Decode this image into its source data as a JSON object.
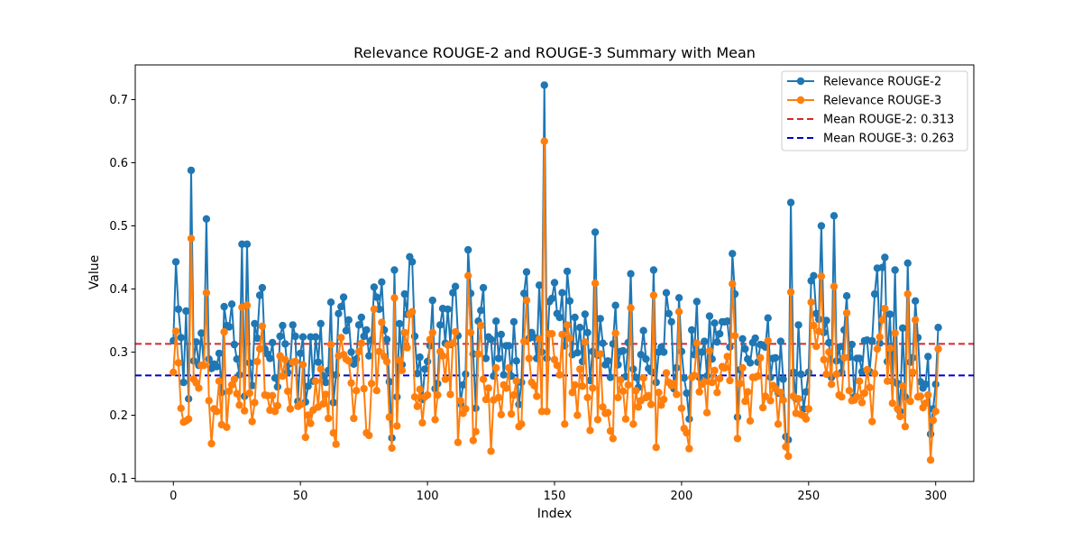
{
  "chart_data": {
    "type": "line",
    "title": "Relevance ROUGE-2 and ROUGE-3 Summary with Mean",
    "xlabel": "Index",
    "ylabel": "Value",
    "xlim": [
      -15,
      315
    ],
    "ylim": [
      0.095,
      0.755
    ],
    "xticks": [
      0,
      50,
      100,
      150,
      200,
      250,
      300
    ],
    "yticks": [
      0.1,
      0.2,
      0.3,
      0.4,
      0.5,
      0.6,
      0.7
    ],
    "ytick_labels": [
      "0.1",
      "0.2",
      "0.3",
      "0.4",
      "0.5",
      "0.6",
      "0.7"
    ],
    "grid": false,
    "legend_position": "top-right",
    "series": [
      {
        "name": "Relevance ROUGE-2",
        "color": "#1f77b4",
        "marker": "circle",
        "values": [
          0.318,
          0.443,
          0.368,
          0.323,
          0.252,
          0.365,
          0.226,
          0.588,
          0.286,
          0.316,
          0.279,
          0.33,
          0.279,
          0.511,
          0.289,
          0.274,
          0.281,
          0.277,
          0.298,
          0.236,
          0.372,
          0.342,
          0.34,
          0.376,
          0.312,
          0.289,
          0.264,
          0.471,
          0.23,
          0.471,
          0.283,
          0.247,
          0.345,
          0.322,
          0.39,
          0.402,
          0.305,
          0.297,
          0.29,
          0.315,
          0.259,
          0.245,
          0.325,
          0.342,
          0.313,
          0.268,
          0.282,
          0.343,
          0.325,
          0.222,
          0.298,
          0.324,
          0.221,
          0.246,
          0.324,
          0.254,
          0.324,
          0.284,
          0.345,
          0.262,
          0.252,
          0.271,
          0.379,
          0.22,
          0.264,
          0.361,
          0.372,
          0.387,
          0.334,
          0.351,
          0.3,
          0.281,
          0.289,
          0.343,
          0.355,
          0.325,
          0.335,
          0.294,
          0.319,
          0.403,
          0.387,
          0.368,
          0.411,
          0.335,
          0.32,
          0.253,
          0.164,
          0.43,
          0.229,
          0.345,
          0.28,
          0.392,
          0.36,
          0.451,
          0.443,
          0.325,
          0.266,
          0.292,
          0.225,
          0.273,
          0.285,
          0.31,
          0.382,
          0.242,
          0.25,
          0.343,
          0.369,
          0.314,
          0.368,
          0.312,
          0.394,
          0.404,
          0.326,
          0.218,
          0.248,
          0.265,
          0.462,
          0.393,
          0.297,
          0.211,
          0.349,
          0.366,
          0.402,
          0.29,
          0.324,
          0.32,
          0.262,
          0.349,
          0.29,
          0.328,
          0.264,
          0.31,
          0.31,
          0.262,
          0.348,
          0.286,
          0.217,
          0.252,
          0.393,
          0.427,
          0.322,
          0.331,
          0.323,
          0.29,
          0.406,
          0.3,
          0.723,
          0.29,
          0.38,
          0.385,
          0.41,
          0.361,
          0.355,
          0.394,
          0.31,
          0.428,
          0.381,
          0.296,
          0.355,
          0.299,
          0.339,
          0.285,
          0.36,
          0.331,
          0.255,
          0.301,
          0.49,
          0.295,
          0.353,
          0.314,
          0.28,
          0.286,
          0.26,
          0.313,
          0.374,
          0.28,
          0.301,
          0.302,
          0.261,
          0.315,
          0.424,
          0.273,
          0.26,
          0.244,
          0.296,
          0.334,
          0.289,
          0.274,
          0.269,
          0.43,
          0.252,
          0.3,
          0.308,
          0.3,
          0.394,
          0.361,
          0.348,
          0.242,
          0.275,
          0.386,
          0.301,
          0.259,
          0.235,
          0.194,
          0.335,
          0.296,
          0.38,
          0.26,
          0.3,
          0.317,
          0.262,
          0.357,
          0.289,
          0.346,
          0.316,
          0.329,
          0.348,
          0.348,
          0.349,
          0.308,
          0.456,
          0.392,
          0.197,
          0.272,
          0.321,
          0.305,
          0.289,
          0.283,
          0.315,
          0.322,
          0.284,
          0.312,
          0.311,
          0.308,
          0.354,
          0.26,
          0.29,
          0.291,
          0.235,
          0.317,
          0.257,
          0.166,
          0.161,
          0.537,
          0.268,
          0.226,
          0.343,
          0.265,
          0.21,
          0.237,
          0.268,
          0.413,
          0.421,
          0.361,
          0.352,
          0.5,
          0.331,
          0.35,
          0.315,
          0.26,
          0.516,
          0.286,
          0.308,
          0.268,
          0.335,
          0.389,
          0.292,
          0.312,
          0.229,
          0.29,
          0.29,
          0.269,
          0.318,
          0.319,
          0.269,
          0.318,
          0.392,
          0.433,
          0.314,
          0.434,
          0.45,
          0.285,
          0.36,
          0.254,
          0.43,
          0.25,
          0.206,
          0.338,
          0.229,
          0.441,
          0.284,
          0.291,
          0.381,
          0.323,
          0.253,
          0.243,
          0.249,
          0.293,
          0.17,
          0.21,
          0.249,
          0.339
        ]
      },
      {
        "name": "Relevance ROUGE-3",
        "color": "#ff7f0e",
        "marker": "circle",
        "values": [
          0.268,
          0.333,
          0.283,
          0.211,
          0.189,
          0.191,
          0.194,
          0.48,
          0.257,
          0.251,
          0.243,
          0.279,
          0.279,
          0.394,
          0.223,
          0.155,
          0.21,
          0.206,
          0.254,
          0.185,
          0.332,
          0.181,
          0.238,
          0.248,
          0.257,
          0.234,
          0.216,
          0.371,
          0.207,
          0.374,
          0.235,
          0.19,
          0.22,
          0.285,
          0.305,
          0.341,
          0.232,
          0.231,
          0.208,
          0.231,
          0.206,
          0.215,
          0.294,
          0.262,
          0.288,
          0.238,
          0.21,
          0.284,
          0.285,
          0.214,
          0.217,
          0.28,
          0.165,
          0.2,
          0.187,
          0.208,
          0.254,
          0.213,
          0.273,
          0.218,
          0.233,
          0.195,
          0.312,
          0.172,
          0.154,
          0.294,
          0.323,
          0.296,
          0.289,
          0.286,
          0.251,
          0.195,
          0.239,
          0.301,
          0.314,
          0.242,
          0.172,
          0.168,
          0.25,
          0.368,
          0.239,
          0.301,
          0.347,
          0.293,
          0.285,
          0.197,
          0.148,
          0.386,
          0.183,
          0.287,
          0.271,
          0.331,
          0.307,
          0.36,
          0.364,
          0.229,
          0.214,
          0.241,
          0.188,
          0.229,
          0.232,
          0.32,
          0.331,
          0.193,
          0.232,
          0.301,
          0.294,
          0.257,
          0.311,
          0.233,
          0.314,
          0.332,
          0.157,
          0.223,
          0.203,
          0.21,
          0.421,
          0.331,
          0.16,
          0.174,
          0.297,
          0.342,
          0.257,
          0.225,
          0.243,
          0.143,
          0.224,
          0.275,
          0.228,
          0.201,
          0.248,
          0.243,
          0.275,
          0.202,
          0.232,
          0.254,
          0.182,
          0.186,
          0.317,
          0.382,
          0.29,
          0.252,
          0.247,
          0.23,
          0.321,
          0.206,
          0.634,
          0.206,
          0.329,
          0.329,
          0.288,
          0.279,
          0.264,
          0.328,
          0.186,
          0.343,
          0.322,
          0.236,
          0.248,
          0.2,
          0.273,
          0.246,
          0.316,
          0.228,
          0.176,
          0.243,
          0.409,
          0.193,
          0.297,
          0.213,
          0.203,
          0.204,
          0.175,
          0.163,
          0.33,
          0.228,
          0.256,
          0.238,
          0.194,
          0.248,
          0.37,
          0.186,
          0.239,
          0.213,
          0.223,
          0.259,
          0.228,
          0.231,
          0.217,
          0.39,
          0.149,
          0.236,
          0.216,
          0.225,
          0.267,
          0.252,
          0.247,
          0.25,
          0.233,
          0.364,
          0.211,
          0.179,
          0.172,
          0.147,
          0.26,
          0.263,
          0.314,
          0.237,
          0.249,
          0.253,
          0.204,
          0.302,
          0.252,
          0.271,
          0.236,
          0.258,
          0.277,
          0.275,
          0.293,
          0.255,
          0.408,
          0.326,
          0.163,
          0.25,
          0.275,
          0.222,
          0.237,
          0.191,
          0.26,
          0.26,
          0.262,
          0.291,
          0.212,
          0.23,
          0.318,
          0.223,
          0.247,
          0.242,
          0.186,
          0.236,
          0.224,
          0.15,
          0.135,
          0.395,
          0.23,
          0.203,
          0.226,
          0.201,
          0.199,
          0.194,
          0.21,
          0.379,
          0.342,
          0.309,
          0.333,
          0.42,
          0.288,
          0.265,
          0.3,
          0.249,
          0.404,
          0.265,
          0.232,
          0.229,
          0.291,
          0.362,
          0.239,
          0.223,
          0.224,
          0.229,
          0.254,
          0.22,
          0.235,
          0.272,
          0.244,
          0.19,
          0.266,
          0.305,
          0.324,
          0.351,
          0.369,
          0.254,
          0.306,
          0.219,
          0.33,
          0.21,
          0.198,
          0.246,
          0.182,
          0.392,
          0.222,
          0.268,
          0.351,
          0.229,
          0.23,
          0.212,
          0.219,
          0.232,
          0.129,
          0.192,
          0.206,
          0.305
        ]
      }
    ],
    "reference_lines": [
      {
        "name": "Mean ROUGE-2: 0.313",
        "y": 0.313,
        "color": "#d62728",
        "style": "dashed"
      },
      {
        "name": "Mean ROUGE-3: 0.263",
        "y": 0.263,
        "color": "#0000cc",
        "style": "dashed"
      }
    ]
  }
}
